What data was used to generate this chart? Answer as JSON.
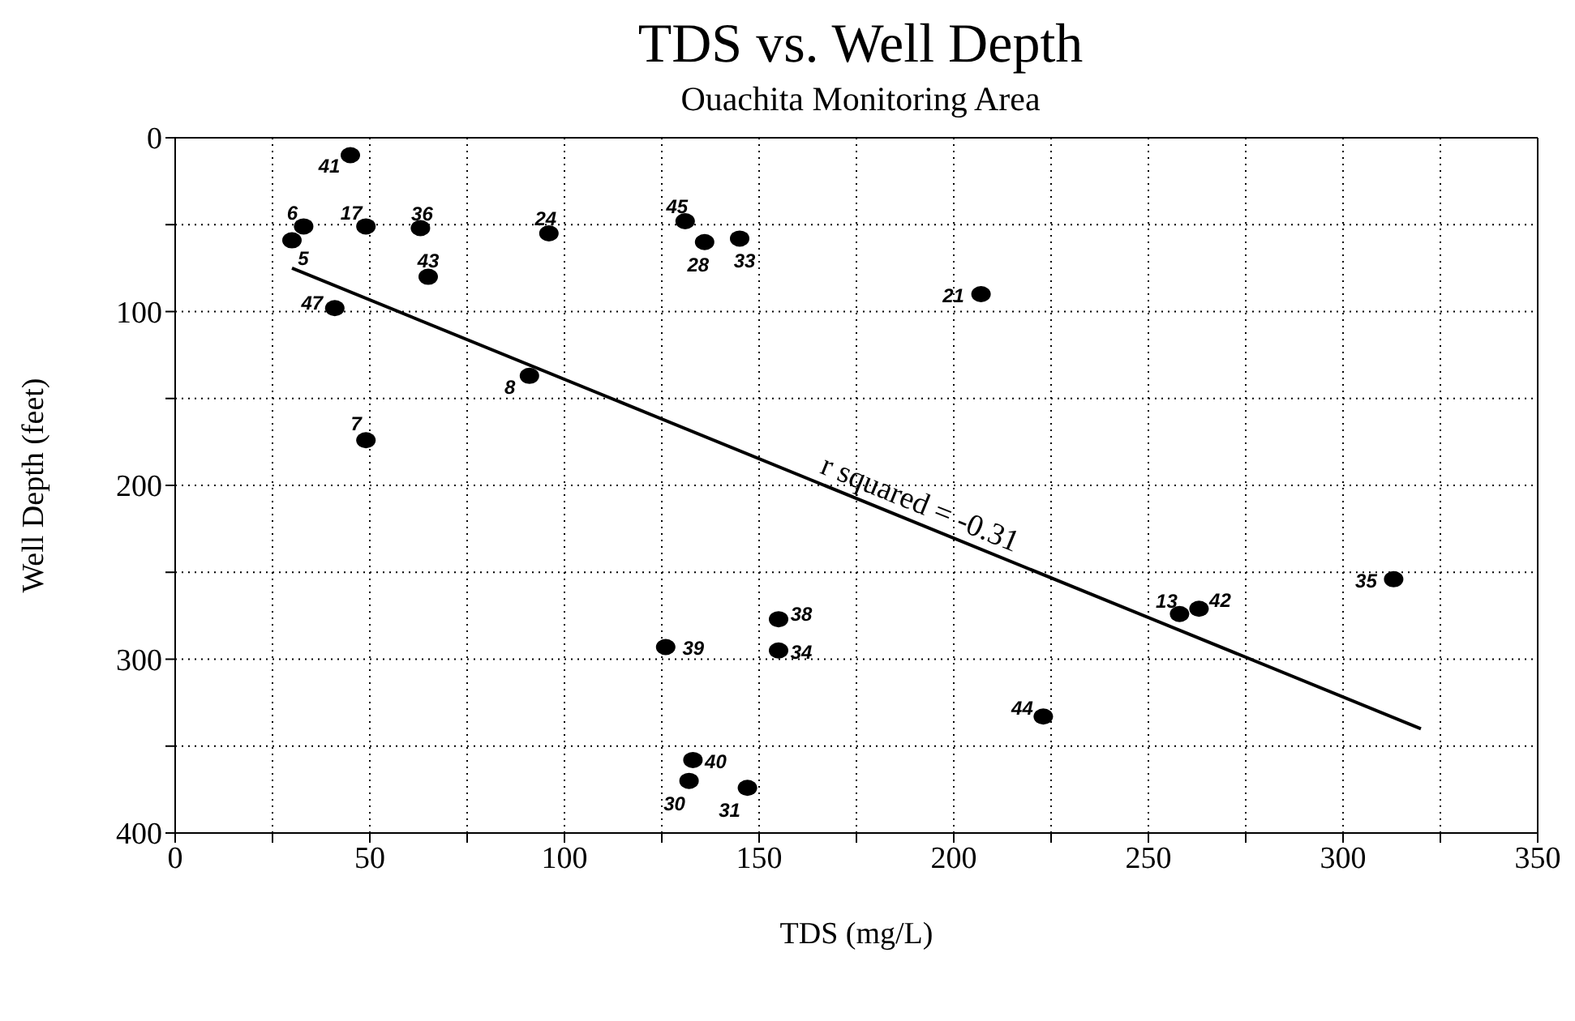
{
  "chart_data": {
    "type": "scatter",
    "title": "TDS vs. Well Depth",
    "subtitle": "Ouachita Monitoring Area",
    "xlabel": "TDS (mg/L)",
    "ylabel": "Well Depth (feet)",
    "xlim": [
      0,
      350
    ],
    "xticks": [
      0,
      {
        "value": 25,
        "label": null
      },
      50,
      {
        "value": 75,
        "label": null
      },
      100,
      {
        "value": 125,
        "label": null
      },
      150,
      {
        "value": 175,
        "label": null
      },
      200,
      {
        "value": 225,
        "label": null
      },
      250,
      {
        "value": 275,
        "label": null
      },
      300,
      {
        "value": 325,
        "label": null
      },
      350
    ],
    "ylim": [
      400,
      0
    ],
    "yticks": [
      0,
      {
        "value": 50,
        "label": null
      },
      100,
      {
        "value": 150,
        "label": null
      },
      200,
      {
        "value": 250,
        "label": null
      },
      300,
      {
        "value": 350,
        "label": null
      },
      400
    ],
    "grid": true,
    "marker": "circle",
    "series": [
      {
        "color": "#000000",
        "x": [
          45,
          33,
          30,
          49,
          63,
          96,
          131,
          136,
          145,
          65,
          41,
          91,
          49,
          207,
          258,
          263,
          313,
          155,
          126,
          155,
          223,
          133,
          132,
          147
        ],
        "values": [
          10,
          51,
          59,
          51,
          52,
          55,
          48,
          60,
          58,
          80,
          98,
          137,
          174,
          90,
          274,
          271,
          254,
          277,
          293,
          295,
          333,
          358,
          370,
          374
        ]
      },
      {
        "type": "line",
        "color": "#000000",
        "marker": "none",
        "x": [
          30,
          320
        ],
        "values": [
          75,
          340
        ]
      }
    ],
    "annotations": [
      {
        "text": "41",
        "x": 45,
        "y": 10
      },
      {
        "text": "6",
        "x": 33,
        "y": 51
      },
      {
        "text": "5",
        "x": 30,
        "y": 59
      },
      {
        "text": "17",
        "x": 49,
        "y": 51
      },
      {
        "text": "36",
        "x": 63,
        "y": 52
      },
      {
        "text": "24",
        "x": 96,
        "y": 55
      },
      {
        "text": "45",
        "x": 131,
        "y": 48
      },
      {
        "text": "28",
        "x": 136,
        "y": 60
      },
      {
        "text": "33",
        "x": 145,
        "y": 58
      },
      {
        "text": "43",
        "x": 65,
        "y": 80
      },
      {
        "text": "47",
        "x": 41,
        "y": 98
      },
      {
        "text": "8",
        "x": 91,
        "y": 137
      },
      {
        "text": "7",
        "x": 49,
        "y": 174
      },
      {
        "text": "21",
        "x": 207,
        "y": 90
      },
      {
        "text": "13",
        "x": 258,
        "y": 274
      },
      {
        "text": "42",
        "x": 263,
        "y": 271
      },
      {
        "text": "35",
        "x": 313,
        "y": 254
      },
      {
        "text": "38",
        "x": 155,
        "y": 277
      },
      {
        "text": "39",
        "x": 126,
        "y": 293
      },
      {
        "text": "34",
        "x": 155,
        "y": 295
      },
      {
        "text": "44",
        "x": 223,
        "y": 333
      },
      {
        "text": "40",
        "x": 133,
        "y": 358
      },
      {
        "text": "30",
        "x": 132,
        "y": 370
      },
      {
        "text": "31",
        "x": 147,
        "y": 374
      },
      "r squared = -0.31"
    ]
  }
}
